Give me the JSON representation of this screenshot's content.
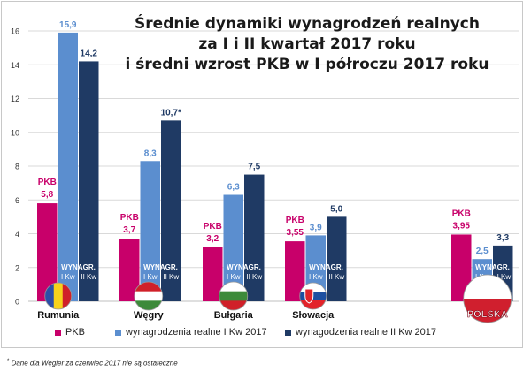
{
  "chart_data": {
    "type": "bar",
    "title": [
      "Średnie dynamiki wynagrodzeń realnych",
      "za I i II kwartał 2017 roku",
      "i średni wzrost PKB w I półroczu 2017 roku"
    ],
    "ylim": [
      0,
      16
    ],
    "yticks": [
      0,
      2,
      4,
      6,
      8,
      10,
      12,
      14,
      16
    ],
    "grid": true,
    "categories": [
      "Rumunia",
      "Węgry",
      "Bułgaria",
      "Słowacja",
      "POLSKA"
    ],
    "series": [
      {
        "name": "PKB",
        "color": "#c8006a",
        "values": [
          5.8,
          3.7,
          3.2,
          3.55,
          3.95
        ],
        "labels": [
          "PKB\n5,8",
          "PKB\n3,7",
          "PKB\n3,2",
          "PKB\n3,55",
          "PKB\n3,95"
        ]
      },
      {
        "name": "wynagrodzenia realne I Kw 2017",
        "color": "#5b8ecf",
        "values": [
          15.9,
          8.3,
          6.3,
          3.9,
          2.5
        ],
        "labels": [
          "15,9",
          "8,3",
          "6,3",
          "3,9",
          "2,5"
        ],
        "inner_label": "I Kw"
      },
      {
        "name": "wynagodzenia realne II Kw 2017",
        "color": "#1f3a64",
        "values": [
          14.2,
          10.7,
          7.5,
          5.0,
          3.3
        ],
        "labels": [
          "14,2",
          "10,7*",
          "7,5",
          "5,0",
          "3,3"
        ],
        "inner_label": "II Kw"
      }
    ],
    "inner_overlay_label": "WYNAGR.",
    "flags": [
      {
        "country": "Rumunia",
        "stripes": [
          "#2b4fa8",
          "#f6d21c",
          "#d02029"
        ],
        "orientation": "vertical"
      },
      {
        "country": "Węgry",
        "stripes": [
          "#d02029",
          "#ffffff",
          "#3d8a3a"
        ],
        "orientation": "horizontal"
      },
      {
        "country": "Bułgaria",
        "stripes": [
          "#ffffff",
          "#3d8a3a",
          "#d02029"
        ],
        "orientation": "horizontal"
      },
      {
        "country": "Słowacja",
        "stripes": [
          "#ffffff",
          "#1d4fa0",
          "#e2232a"
        ],
        "orientation": "horizontal"
      },
      {
        "country": "POLSKA",
        "stripes": [
          "#ffffff",
          "#d01f2e"
        ],
        "orientation": "horizontal"
      }
    ],
    "legend_position": "bottom",
    "footnote": "Dane dla Węgier za czerwiec 2017 nie są ostateczne",
    "footnote_marker": "*"
  }
}
